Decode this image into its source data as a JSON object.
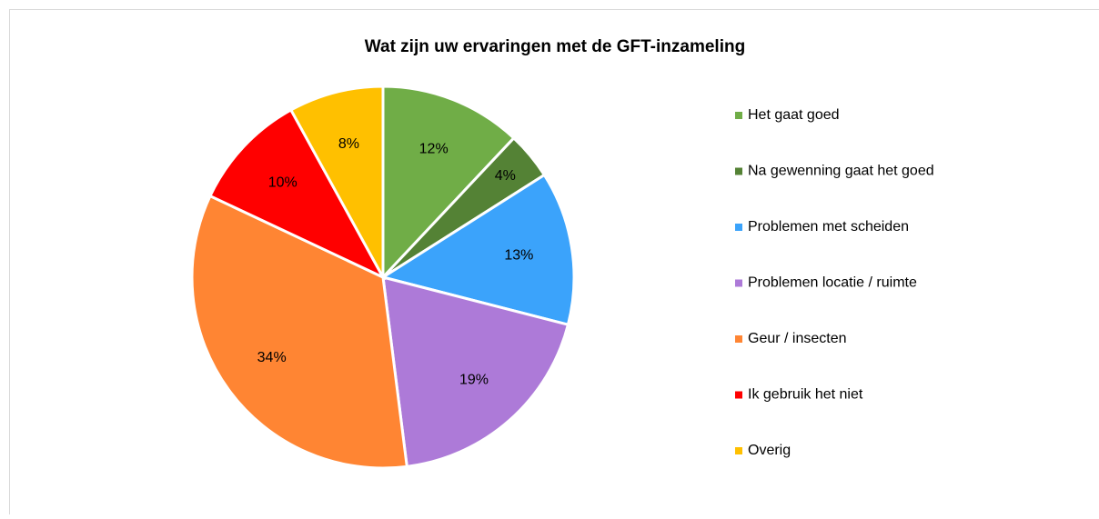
{
  "chart_data": {
    "type": "pie",
    "title": "Wat zijn uw ervaringen met de GFT-inzameling",
    "categories": [
      "Het gaat goed",
      "Na gewenning gaat het goed",
      "Problemen met scheiden",
      "Problemen locatie / ruimte",
      "Geur / insecten",
      "Ik gebruik het niet",
      "Overig"
    ],
    "values": [
      12,
      4,
      13,
      19,
      34,
      10,
      8
    ],
    "value_labels": [
      "12%",
      "4%",
      "13%",
      "19%",
      "34%",
      "10%",
      "8%"
    ],
    "colors": [
      "#70ad47",
      "#548235",
      "#3ba3fb",
      "#ad7ad8",
      "#ff8533",
      "#ff0000",
      "#ffc000"
    ],
    "legend": "right"
  }
}
